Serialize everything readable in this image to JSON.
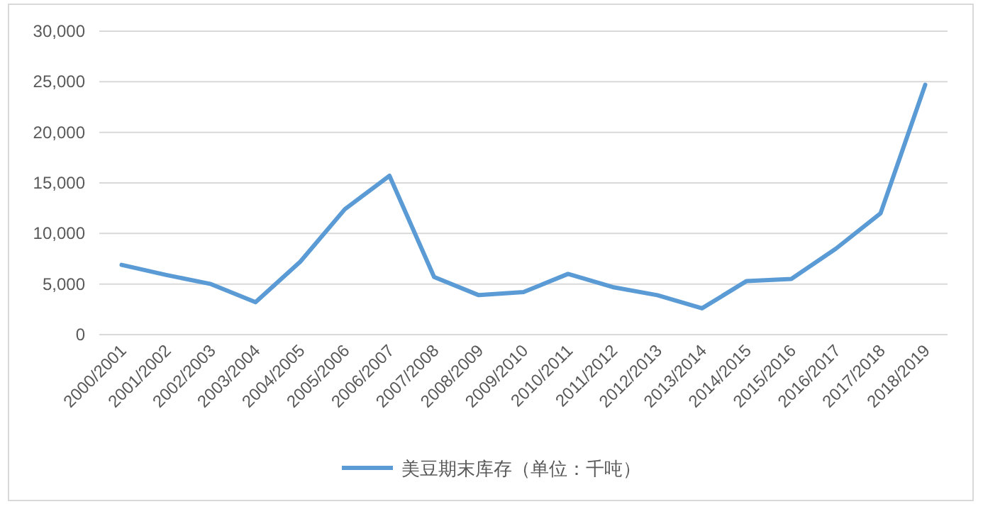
{
  "chart_data": {
    "type": "line",
    "categories": [
      "2000/2001",
      "2001/2002",
      "2002/2003",
      "2003/2004",
      "2004/2005",
      "2005/2006",
      "2006/2007",
      "2007/2008",
      "2008/2009",
      "2009/2010",
      "2010/2011",
      "2011/2012",
      "2012/2013",
      "2013/2014",
      "2014/2015",
      "2015/2016",
      "2016/2017",
      "2017/2018",
      "2018/2019"
    ],
    "series": [
      {
        "name": "美豆期末库存（单位：千吨）",
        "color": "#5b9bd5",
        "values": [
          6900,
          5900,
          5000,
          3200,
          7200,
          12400,
          15700,
          5700,
          3900,
          4200,
          6000,
          4700,
          3900,
          2600,
          5300,
          5500,
          8500,
          12000,
          24700
        ]
      }
    ],
    "ylim": [
      0,
      30000
    ],
    "yticks": [
      {
        "value": 0,
        "label": "0"
      },
      {
        "value": 5000,
        "label": "5,000"
      },
      {
        "value": 10000,
        "label": "10,000"
      },
      {
        "value": 15000,
        "label": "15,000"
      },
      {
        "value": 20000,
        "label": "20,000"
      },
      {
        "value": 25000,
        "label": "25,000"
      },
      {
        "value": 30000,
        "label": "30,000"
      }
    ],
    "grid": "y",
    "legend": "bottom",
    "marker": "none",
    "line_style": "solid"
  }
}
